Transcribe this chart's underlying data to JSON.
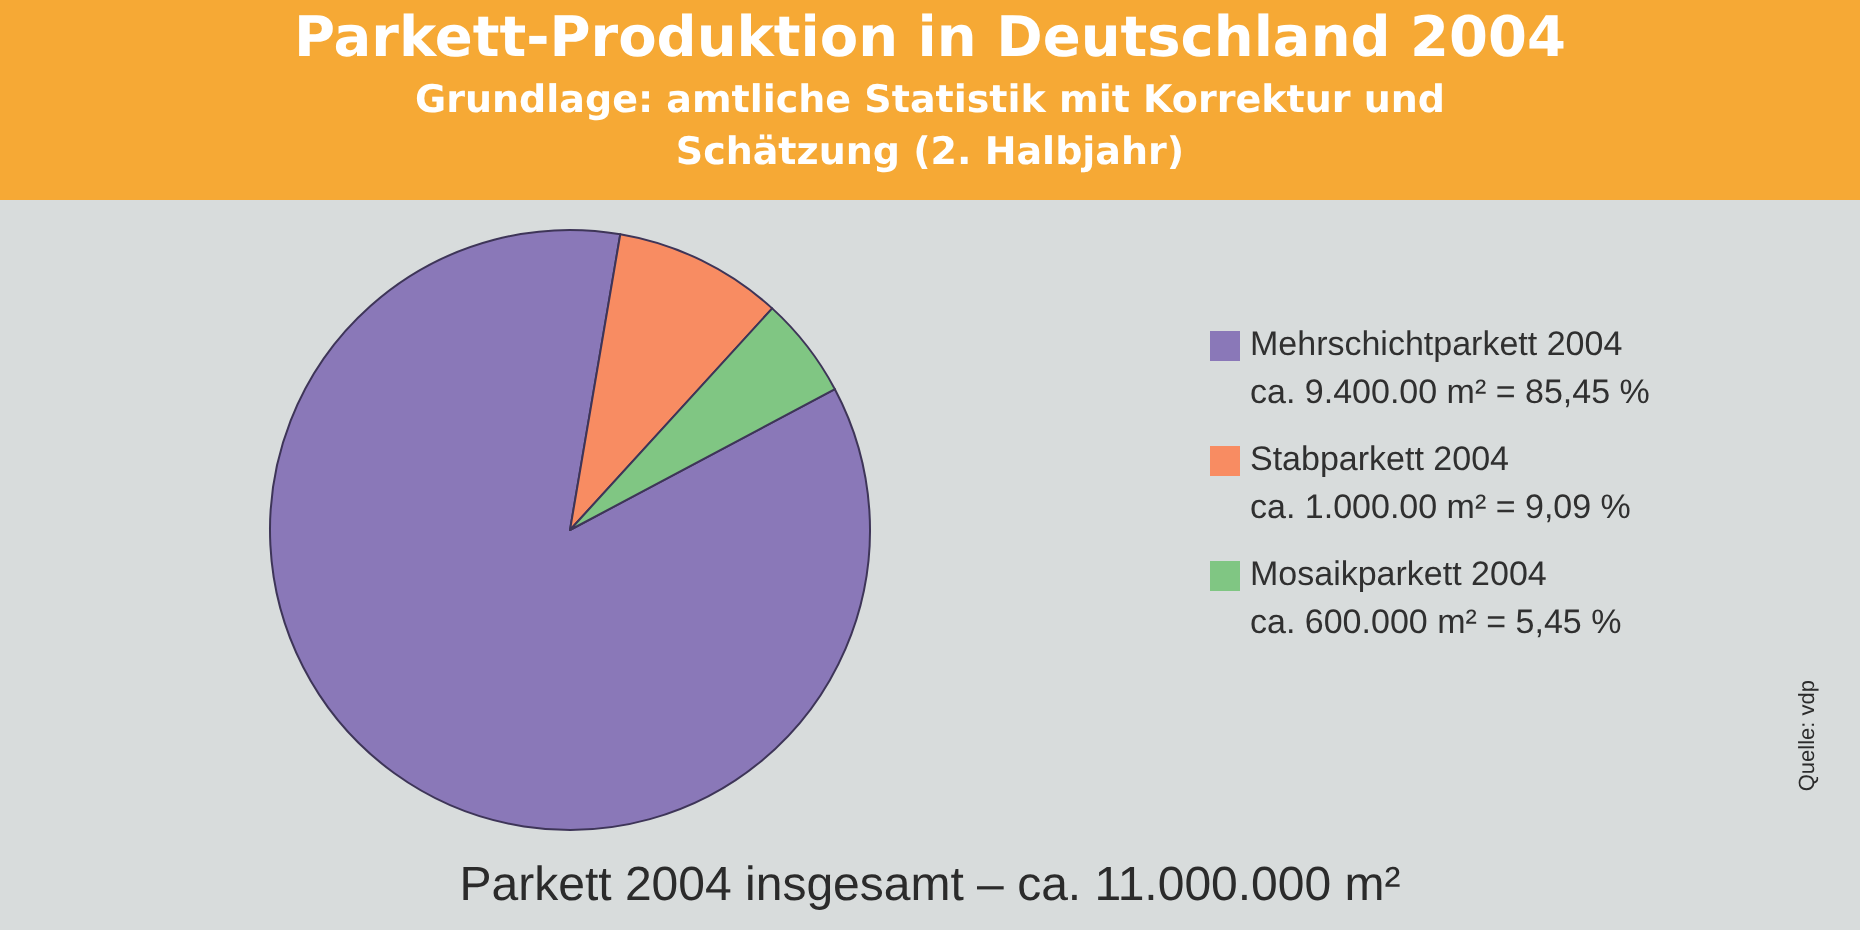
{
  "chart_data": {
    "type": "pie",
    "title": "Parkett-Produktion in Deutschland 2004",
    "subtitle": "Grundlage: amtliche Statistik mit Korrektur und Schätzung (2. Halbjahr)",
    "categories": [
      "Mehrschichtparkett 2004",
      "Stabparkett 2004",
      "Mosaikparkett 2004"
    ],
    "values": [
      85.45,
      9.09,
      5.45
    ],
    "colors": [
      "#8a78b8",
      "#f88c62",
      "#80c683"
    ],
    "value_labels": [
      "ca. 9.400.00 m² = 85,45 %",
      "ca. 1.000.00 m² = 9,09 %",
      "ca. 600.000 m² = 5,45 %"
    ],
    "legend": "right",
    "annotations": [
      "Parkett 2004 insgesamt – ca. 11.000.000 m²",
      "Quelle: vdp"
    ]
  }
}
